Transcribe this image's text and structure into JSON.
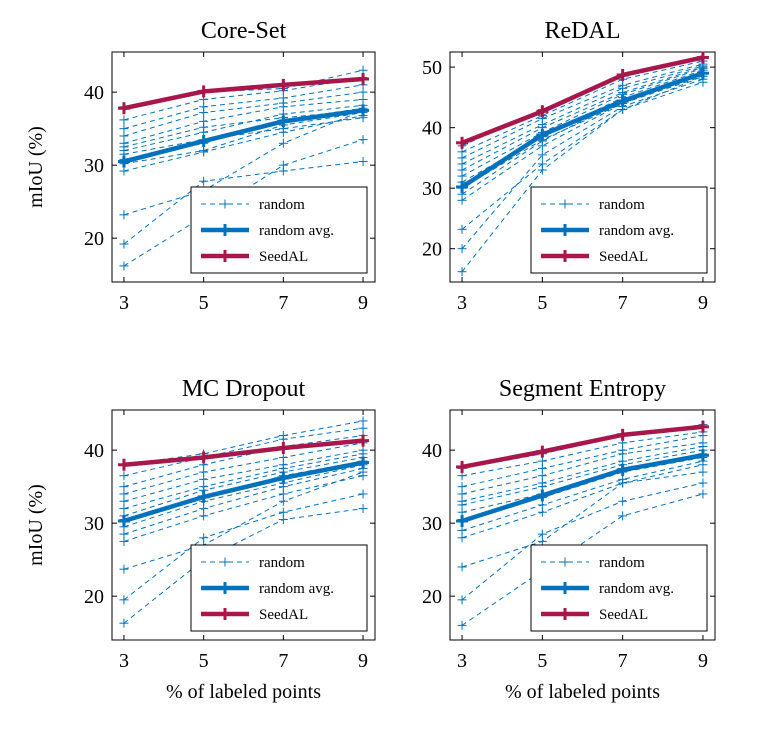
{
  "figure": {
    "colors": {
      "random": "#0072BD",
      "seedal": "#A8164A"
    }
  },
  "chart_data": [
    {
      "type": "line",
      "title": "Core-Set",
      "xlabel": "",
      "ylabel": "mIoU (%)",
      "x": [
        3,
        5,
        7,
        9
      ],
      "xticks": [
        3,
        5,
        7,
        9
      ],
      "yticks": [
        20,
        30,
        40
      ],
      "ylim": [
        14,
        45.5
      ],
      "grid": false,
      "legend": {
        "position": "bottom-right",
        "entries": [
          "random",
          "random avg.",
          "SeedAL"
        ]
      },
      "series": [
        {
          "name": "random",
          "kind": "runs",
          "runs": [
            [
              16.2,
              23.0,
              30.0,
              33.5
            ],
            [
              19.2,
              27.8,
              29.2,
              30.5
            ],
            [
              23.2,
              26.5,
              33.0,
              37.5
            ],
            [
              29.2,
              31.8,
              34.5,
              36.8
            ],
            [
              30.2,
              32.0,
              35.5,
              37.2
            ],
            [
              30.8,
              33.0,
              36.2,
              37.8
            ],
            [
              31.5,
              33.5,
              35.0,
              36.5
            ],
            [
              32.0,
              34.5,
              37.0,
              38.2
            ],
            [
              32.5,
              35.2,
              36.5,
              37.5
            ],
            [
              33.0,
              36.0,
              38.0,
              39.0
            ],
            [
              34.0,
              37.2,
              38.5,
              40.0
            ],
            [
              35.0,
              38.0,
              39.2,
              41.0
            ],
            [
              36.2,
              39.0,
              40.2,
              42.0
            ],
            [
              38.0,
              40.0,
              40.5,
              43.0
            ]
          ]
        },
        {
          "name": "random avg.",
          "kind": "avg",
          "values": [
            30.5,
            33.3,
            36.0,
            37.5
          ]
        },
        {
          "name": "SeedAL",
          "kind": "seedal",
          "values": [
            37.8,
            40.1,
            41.0,
            41.8
          ]
        }
      ]
    },
    {
      "type": "line",
      "title": "ReDAL",
      "xlabel": "",
      "ylabel": "",
      "x": [
        3,
        5,
        7,
        9
      ],
      "xticks": [
        3,
        5,
        7,
        9
      ],
      "yticks": [
        20,
        30,
        40,
        50
      ],
      "ylim": [
        14.5,
        52.5
      ],
      "grid": false,
      "legend": {
        "position": "bottom-right",
        "entries": [
          "random",
          "random avg.",
          "SeedAL"
        ]
      },
      "series": [
        {
          "name": "random",
          "kind": "runs",
          "runs": [
            [
              16.2,
              33.0,
              43.0,
              47.5
            ],
            [
              20.0,
              35.5,
              43.5,
              48.0
            ],
            [
              23.2,
              34.0,
              43.0,
              48.5
            ],
            [
              28.0,
              37.0,
              44.0,
              48.5
            ],
            [
              29.0,
              37.8,
              44.5,
              49.0
            ],
            [
              30.0,
              38.0,
              44.0,
              49.0
            ],
            [
              31.0,
              38.5,
              45.0,
              49.5
            ],
            [
              32.0,
              39.2,
              45.5,
              49.8
            ],
            [
              33.0,
              40.0,
              45.8,
              50.0
            ],
            [
              34.0,
              40.5,
              46.5,
              50.2
            ],
            [
              35.0,
              41.5,
              47.0,
              50.5
            ],
            [
              36.0,
              42.0,
              48.0,
              51.0
            ],
            [
              37.0,
              43.0,
              48.5,
              51.5
            ]
          ]
        },
        {
          "name": "random avg.",
          "kind": "avg",
          "values": [
            30.2,
            38.8,
            44.4,
            49.0
          ]
        },
        {
          "name": "SeedAL",
          "kind": "seedal",
          "values": [
            37.5,
            42.7,
            48.7,
            51.6
          ]
        }
      ]
    },
    {
      "type": "line",
      "title": "MC Dropout",
      "xlabel": "% of labeled points",
      "ylabel": "mIoU (%)",
      "x": [
        3,
        5,
        7,
        9
      ],
      "xticks": [
        3,
        5,
        7,
        9
      ],
      "yticks": [
        20,
        30,
        40
      ],
      "ylim": [
        14,
        45.5
      ],
      "grid": false,
      "legend": {
        "position": "bottom-right",
        "entries": [
          "random",
          "random avg.",
          "SeedAL"
        ]
      },
      "series": [
        {
          "name": "random",
          "kind": "runs",
          "runs": [
            [
              16.3,
              25.0,
              30.5,
              32.0
            ],
            [
              19.5,
              28.0,
              31.5,
              34.0
            ],
            [
              23.7,
              27.0,
              33.0,
              37.0
            ],
            [
              27.5,
              31.0,
              34.0,
              36.5
            ],
            [
              28.5,
              32.0,
              35.0,
              37.5
            ],
            [
              29.5,
              33.0,
              35.5,
              38.0
            ],
            [
              30.5,
              33.5,
              36.5,
              38.5
            ],
            [
              31.0,
              34.5,
              37.0,
              39.0
            ],
            [
              32.0,
              35.0,
              37.5,
              39.5
            ],
            [
              33.0,
              36.0,
              38.0,
              40.0
            ],
            [
              34.0,
              37.0,
              39.0,
              41.0
            ],
            [
              35.0,
              38.0,
              40.5,
              42.0
            ],
            [
              36.5,
              39.0,
              41.5,
              43.0
            ],
            [
              38.0,
              39.5,
              42.0,
              44.0
            ]
          ]
        },
        {
          "name": "random avg.",
          "kind": "avg",
          "values": [
            30.3,
            33.6,
            36.2,
            38.3
          ]
        },
        {
          "name": "SeedAL",
          "kind": "seedal",
          "values": [
            38.0,
            39.0,
            40.3,
            41.3
          ]
        }
      ]
    },
    {
      "type": "line",
      "title": "Segment Entropy",
      "xlabel": "% of labeled points",
      "ylabel": "",
      "x": [
        3,
        5,
        7,
        9
      ],
      "xticks": [
        3,
        5,
        7,
        9
      ],
      "yticks": [
        20,
        30,
        40
      ],
      "ylim": [
        14,
        45.5
      ],
      "grid": false,
      "legend": {
        "position": "bottom-right",
        "entries": [
          "random",
          "random avg.",
          "SeedAL"
        ]
      },
      "series": [
        {
          "name": "random",
          "kind": "runs",
          "runs": [
            [
              16.0,
              23.5,
              31.0,
              34.0
            ],
            [
              19.5,
              28.5,
              33.0,
              35.5
            ],
            [
              24.0,
              27.5,
              35.5,
              37.0
            ],
            [
              28.0,
              31.5,
              35.5,
              38.0
            ],
            [
              29.0,
              32.5,
              36.0,
              38.5
            ],
            [
              30.5,
              33.5,
              37.0,
              39.0
            ],
            [
              31.5,
              34.0,
              37.5,
              39.5
            ],
            [
              32.5,
              35.0,
              38.0,
              40.0
            ],
            [
              33.0,
              35.5,
              38.5,
              40.5
            ],
            [
              34.0,
              36.5,
              39.5,
              41.0
            ],
            [
              35.0,
              37.5,
              40.0,
              42.0
            ],
            [
              36.5,
              38.5,
              41.0,
              42.5
            ],
            [
              37.5,
              39.5,
              42.0,
              43.5
            ]
          ]
        },
        {
          "name": "random avg.",
          "kind": "avg",
          "values": [
            30.3,
            33.8,
            37.3,
            39.3
          ]
        },
        {
          "name": "SeedAL",
          "kind": "seedal",
          "values": [
            37.7,
            39.8,
            42.1,
            43.2
          ]
        }
      ]
    }
  ]
}
